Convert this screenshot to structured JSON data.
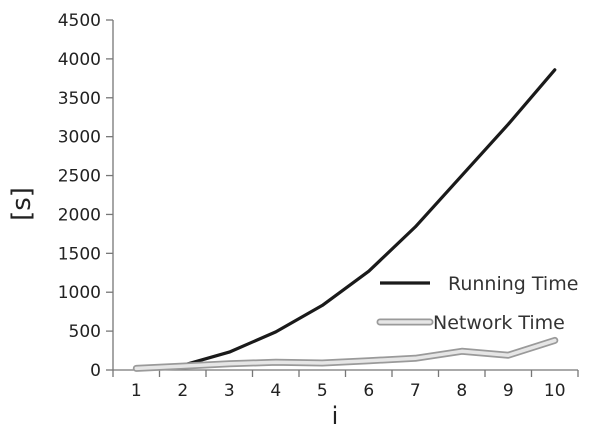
{
  "chart_data": {
    "type": "line",
    "title": "",
    "xlabel": "i",
    "ylabel": "[s]",
    "x": [
      1,
      2,
      3,
      4,
      5,
      6,
      7,
      8,
      9,
      10
    ],
    "x_ticks": [
      "1",
      "2",
      "3",
      "4",
      "5",
      "6",
      "7",
      "8",
      "9",
      "10"
    ],
    "xlim": [
      0.5,
      10.5
    ],
    "ylim": [
      0,
      4500
    ],
    "y_ticks": [
      "0",
      "500",
      "1000",
      "1500",
      "2000",
      "2500",
      "3000",
      "3500",
      "4000",
      "4500"
    ],
    "grid": false,
    "legend_position": "right-center",
    "series": [
      {
        "name": "Running Time",
        "color": "#1a1a1a",
        "style": "solid-thick",
        "values": [
          10,
          60,
          230,
          490,
          830,
          1270,
          1840,
          2500,
          3160,
          3860
        ]
      },
      {
        "name": "Network Time",
        "color": "#b4b4b4",
        "style": "double-outline",
        "values": [
          20,
          50,
          80,
          100,
          90,
          120,
          150,
          240,
          190,
          380
        ]
      }
    ]
  }
}
